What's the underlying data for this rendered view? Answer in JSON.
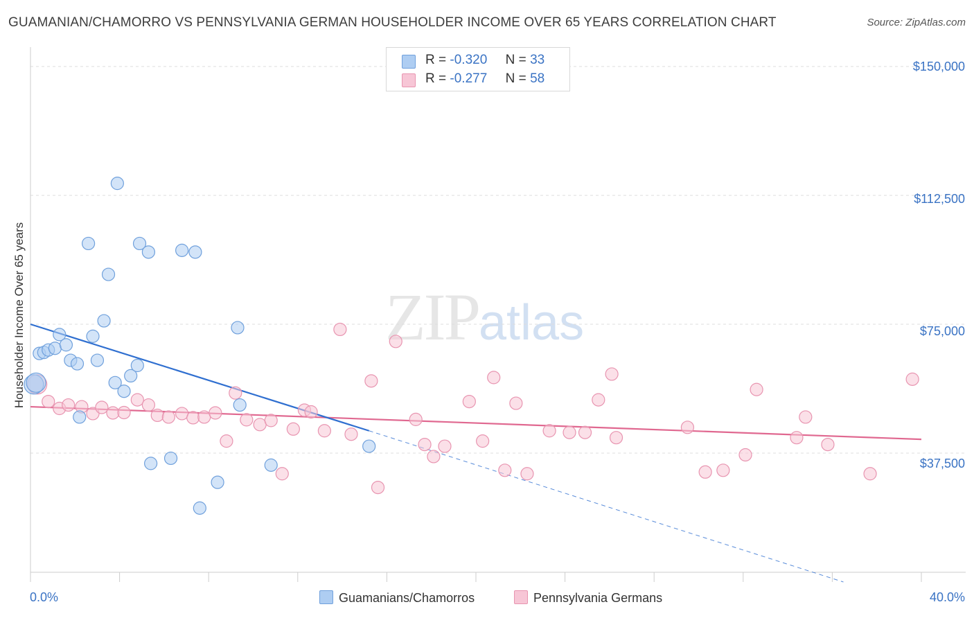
{
  "title": "GUAMANIAN/CHAMORRO VS PENNSYLVANIA GERMAN HOUSEHOLDER INCOME OVER 65 YEARS CORRELATION CHART",
  "source": "Source: ZipAtlas.com",
  "watermark": {
    "zip": "ZIP",
    "atlas": "atlas"
  },
  "legend": {
    "rows": [
      {
        "r_label": "R =",
        "r_value": "-0.320",
        "n_label": "N =",
        "n_value": "33"
      },
      {
        "r_label": "R =",
        "r_value": "-0.277",
        "n_label": "N =",
        "n_value": "58"
      }
    ]
  },
  "bottom_legend": [
    "Guamanians/Chamorros",
    "Pennsylvania Germans"
  ],
  "colors": {
    "blue_fill": "#aecdf2",
    "blue_stroke": "#6fa0dc",
    "blue_line": "#2f6fd0",
    "pink_fill": "#f7c6d6",
    "pink_stroke": "#e894b0",
    "pink_line": "#e06890",
    "tick_text": "#3a73c4",
    "grid": "#dddddd"
  },
  "chart_data": {
    "type": "scatter",
    "title": "GUAMANIAN/CHAMORRO VS PENNSYLVANIA GERMAN HOUSEHOLDER INCOME OVER 65 YEARS CORRELATION CHART",
    "xlabel": "",
    "ylabel": "Householder Income Over 65 years",
    "xlim": [
      0,
      40
    ],
    "ylim": [
      0,
      155000
    ],
    "x_tick_labels": [
      "0.0%",
      "40.0%"
    ],
    "y_tick_labels": [
      "$37,500",
      "$75,000",
      "$112,500",
      "$150,000"
    ],
    "y_ticks": [
      37500,
      75000,
      112500,
      150000
    ],
    "grid": true,
    "legend_position": "top-center",
    "series": [
      {
        "name": "Guamanians/Chamorros",
        "r": -0.32,
        "n": 33,
        "trend": {
          "x0": 0,
          "y0": 75000,
          "x1": 15.2,
          "y1": 44000,
          "dashed_to_x": 36.5,
          "dashed_to_y": 0
        },
        "points": [
          [
            0.4,
            66500
          ],
          [
            0.6,
            66800
          ],
          [
            0.8,
            67500
          ],
          [
            1.1,
            68000
          ],
          [
            1.3,
            72000
          ],
          [
            1.6,
            69000
          ],
          [
            1.8,
            64500
          ],
          [
            2.1,
            63500
          ],
          [
            2.2,
            48000
          ],
          [
            2.6,
            98500
          ],
          [
            2.8,
            71500
          ],
          [
            3.0,
            64500
          ],
          [
            3.3,
            76000
          ],
          [
            3.5,
            89500
          ],
          [
            3.8,
            58000
          ],
          [
            3.9,
            116000
          ],
          [
            4.2,
            55500
          ],
          [
            4.5,
            60000
          ],
          [
            4.8,
            63000
          ],
          [
            4.9,
            98500
          ],
          [
            5.3,
            96000
          ],
          [
            5.4,
            34500
          ],
          [
            6.3,
            36000
          ],
          [
            6.8,
            96500
          ],
          [
            7.4,
            96000
          ],
          [
            7.6,
            21500
          ],
          [
            8.4,
            29000
          ],
          [
            9.3,
            74000
          ],
          [
            9.4,
            51500
          ],
          [
            10.8,
            34000
          ],
          [
            15.2,
            39500
          ],
          [
            0.15,
            57500
          ],
          [
            0.25,
            58000
          ]
        ]
      },
      {
        "name": "Pennsylvania Germans",
        "r": -0.277,
        "n": 58,
        "trend": {
          "x0": 0,
          "y0": 51000,
          "x1": 40,
          "y1": 41500
        },
        "points": [
          [
            0.3,
            57500
          ],
          [
            0.8,
            52500
          ],
          [
            1.3,
            50500
          ],
          [
            1.7,
            51500
          ],
          [
            2.3,
            51000
          ],
          [
            2.8,
            49000
          ],
          [
            3.2,
            50800
          ],
          [
            3.7,
            49200
          ],
          [
            4.2,
            49300
          ],
          [
            4.8,
            53000
          ],
          [
            5.3,
            51500
          ],
          [
            5.7,
            48500
          ],
          [
            6.2,
            48000
          ],
          [
            6.8,
            49000
          ],
          [
            7.3,
            47800
          ],
          [
            7.8,
            48000
          ],
          [
            8.3,
            49200
          ],
          [
            8.8,
            41000
          ],
          [
            9.2,
            55000
          ],
          [
            9.7,
            47200
          ],
          [
            10.3,
            45800
          ],
          [
            10.8,
            47000
          ],
          [
            11.3,
            31500
          ],
          [
            11.8,
            44500
          ],
          [
            12.3,
            50000
          ],
          [
            12.6,
            49500
          ],
          [
            13.2,
            44000
          ],
          [
            13.9,
            73500
          ],
          [
            14.4,
            43000
          ],
          [
            15.3,
            58500
          ],
          [
            15.6,
            27500
          ],
          [
            16.4,
            70000
          ],
          [
            17.3,
            47300
          ],
          [
            17.7,
            40000
          ],
          [
            18.1,
            36500
          ],
          [
            18.6,
            39500
          ],
          [
            19.7,
            52500
          ],
          [
            20.3,
            41000
          ],
          [
            20.8,
            59500
          ],
          [
            21.3,
            32500
          ],
          [
            21.8,
            52000
          ],
          [
            22.3,
            31500
          ],
          [
            23.3,
            44000
          ],
          [
            24.2,
            43500
          ],
          [
            24.9,
            43500
          ],
          [
            25.5,
            53000
          ],
          [
            26.1,
            60500
          ],
          [
            26.3,
            42000
          ],
          [
            29.5,
            45000
          ],
          [
            30.3,
            32000
          ],
          [
            31.1,
            32500
          ],
          [
            32.1,
            37000
          ],
          [
            32.6,
            56000
          ],
          [
            34.4,
            42000
          ],
          [
            34.8,
            48000
          ],
          [
            35.8,
            40000
          ],
          [
            37.7,
            31500
          ],
          [
            39.6,
            59000
          ]
        ]
      }
    ]
  }
}
